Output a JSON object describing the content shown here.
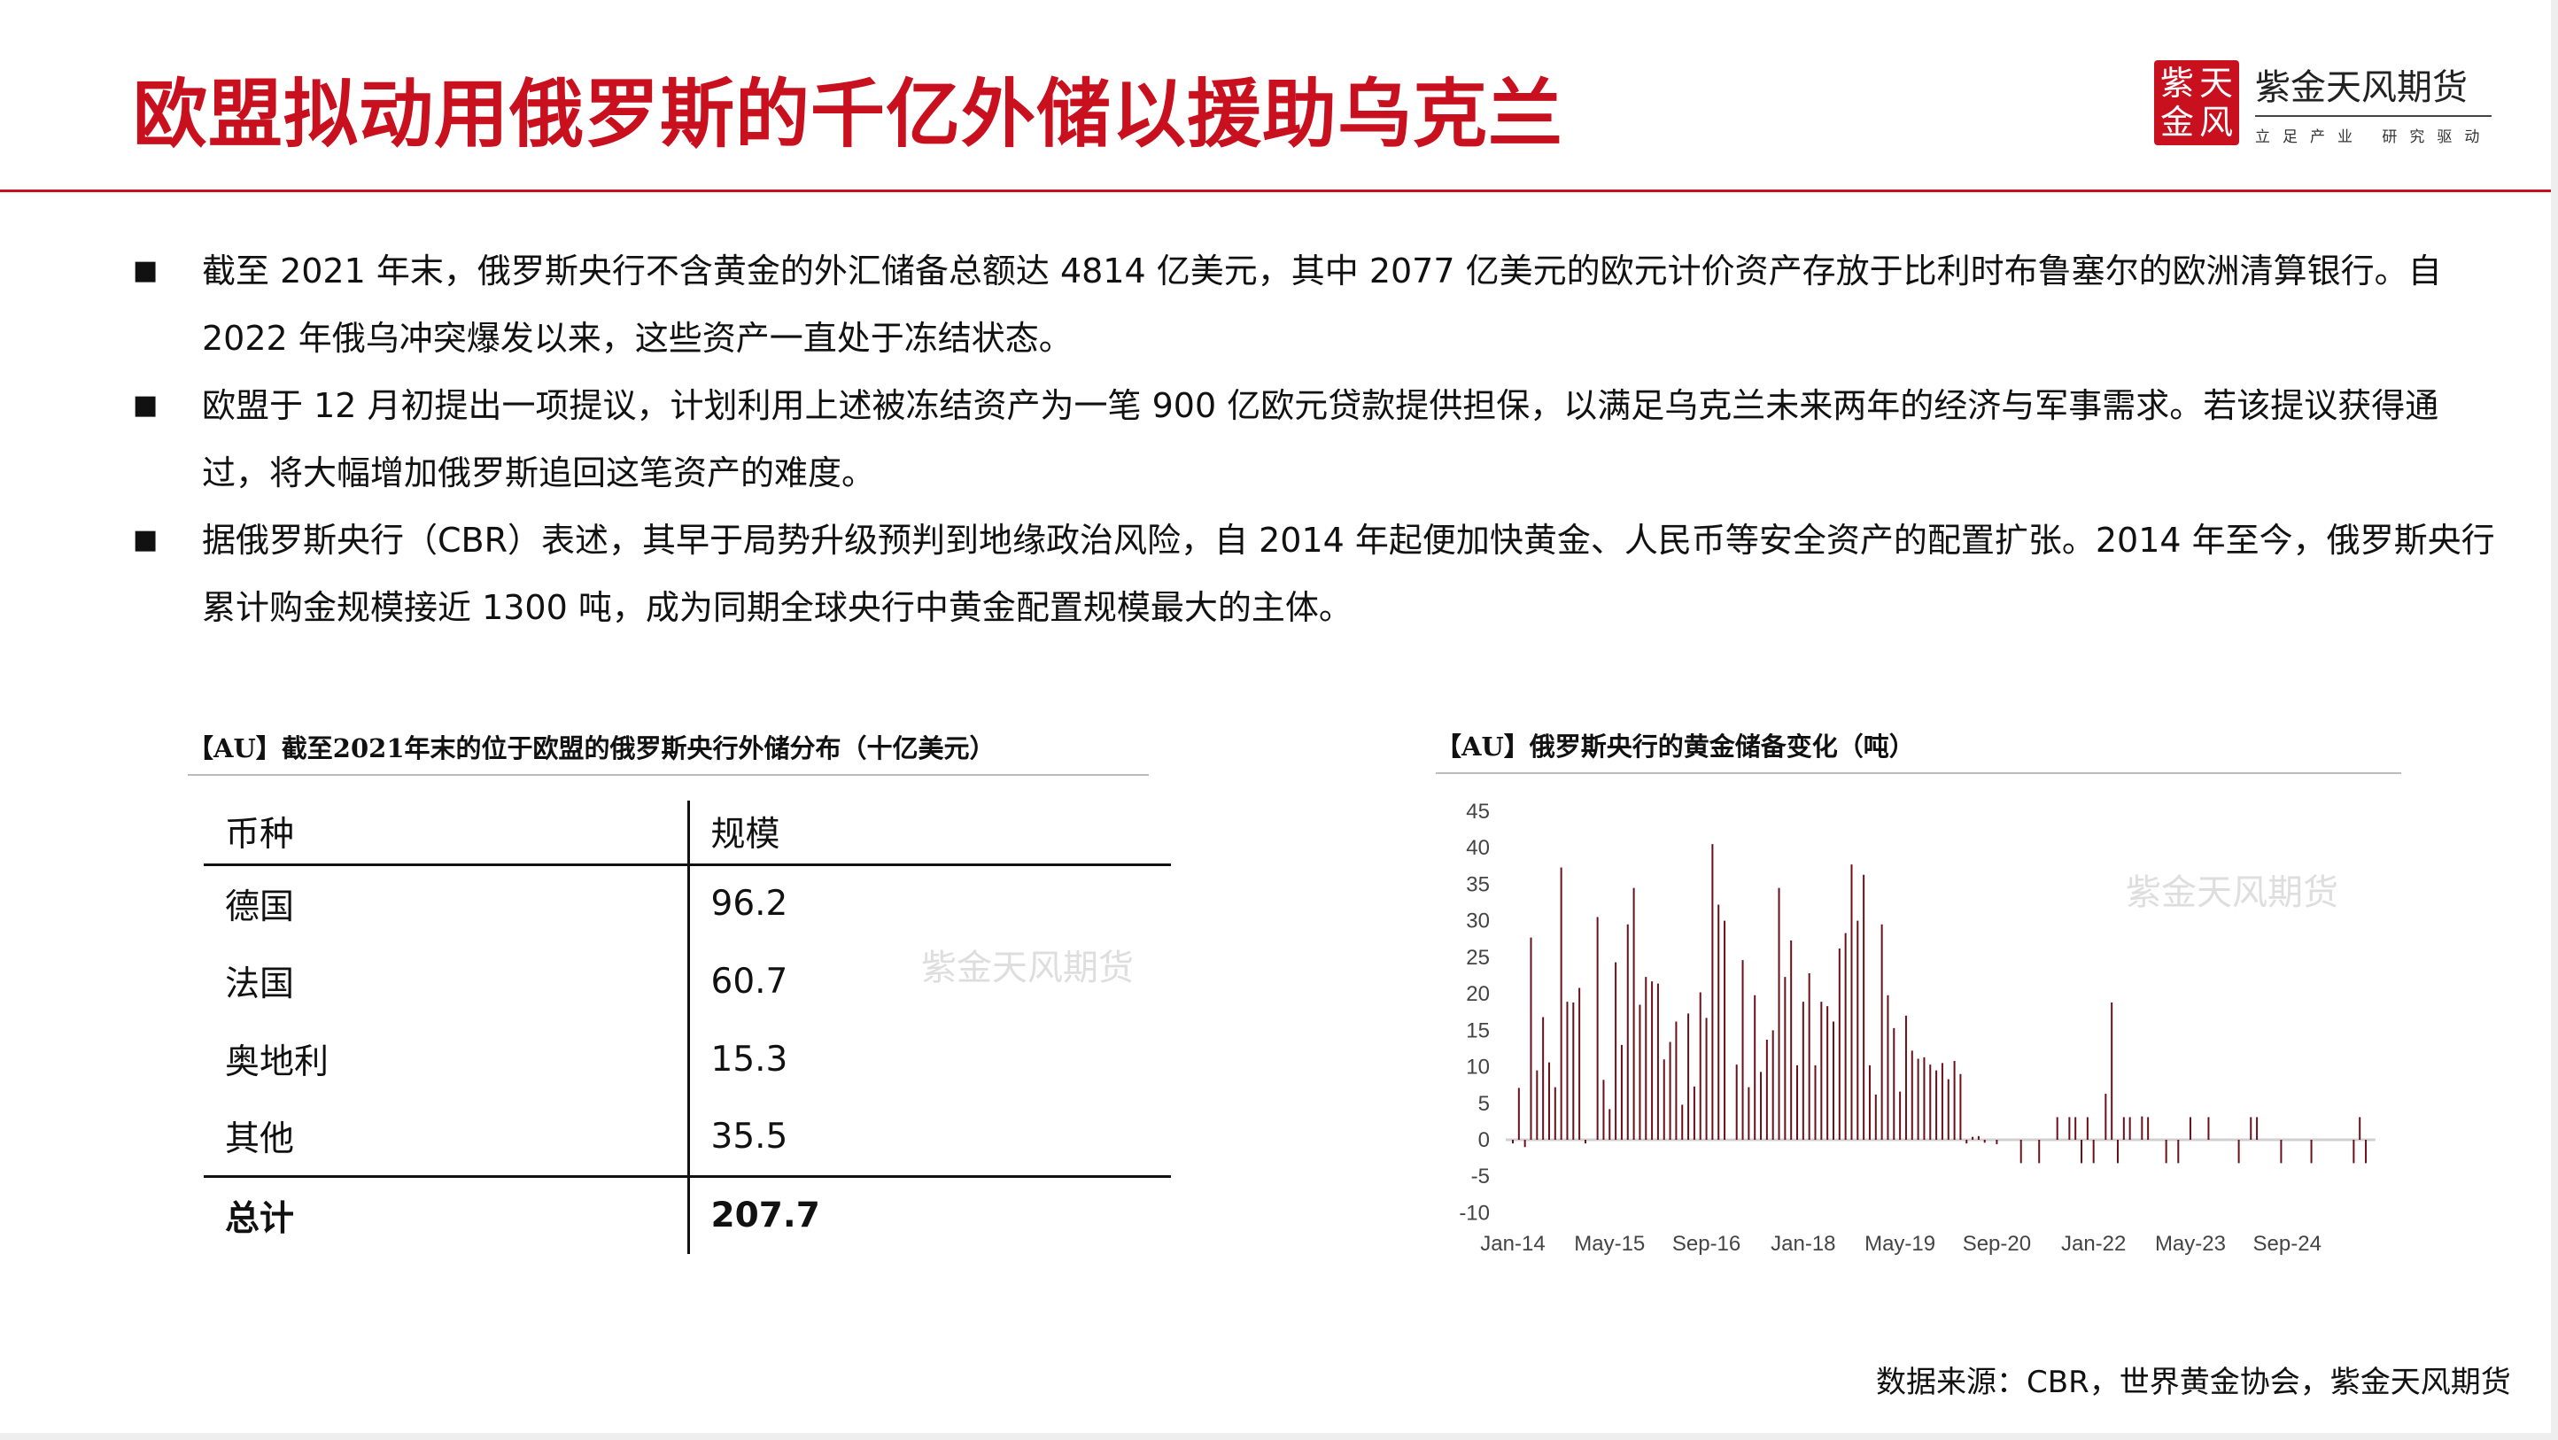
{
  "header": {
    "title": "欧盟拟动用俄罗斯的千亿外储以援助乌克兰",
    "brand_color": "#c8101e"
  },
  "logo": {
    "seal": [
      "紫",
      "天",
      "金",
      "风"
    ],
    "name": "紫金天风期货",
    "slogan": "立足产业 研究驱动"
  },
  "bullets": [
    "截至 2021 年末，俄罗斯央行不含黄金的外汇储备总额达 4814 亿美元，其中 2077 亿美元的欧元计价资产存放于比利时布鲁塞尔的欧洲清算银行。自 2022 年俄乌冲突爆发以来，这些资产一直处于冻结状态。",
    "欧盟于 12 月初提出一项提议，计划利用上述被冻结资产为一笔 900 亿欧元贷款提供担保，以满足乌克兰未来两年的经济与军事需求。若该提议获得通过，将大幅增加俄罗斯追回这笔资产的难度。",
    "据俄罗斯央行（CBR）表述，其早于局势升级预判到地缘政治风险，自 2014 年起便加快黄金、人民币等安全资产的配置扩张。2014 年至今，俄罗斯央行累计购金规模接近 1300 吨，成为同期全球央行中黄金配置规模最大的主体。"
  ],
  "bullet_icon": "square-bullet-icon",
  "table": {
    "title": "【AU】截至2021年末的位于欧盟的俄罗斯央行外储分布（十亿美元）",
    "headers": [
      "币种",
      "规模"
    ],
    "rows": [
      [
        "德国",
        "96.2"
      ],
      [
        "法国",
        "60.7"
      ],
      [
        "奥地利",
        "15.3"
      ],
      [
        "其他",
        "35.5"
      ]
    ],
    "total": [
      "总计",
      "207.7"
    ]
  },
  "chart_data": {
    "type": "bar",
    "title": "【AU】俄罗斯央行的黄金储备变化（吨）",
    "frequency": "monthly",
    "x_tick_labels": [
      "Jan-14",
      "May-15",
      "Sep-16",
      "Jan-18",
      "May-19",
      "Sep-20",
      "Jan-22",
      "May-23",
      "Sep-24"
    ],
    "y_ticks": [
      45,
      40,
      35,
      30,
      25,
      20,
      15,
      10,
      5,
      0,
      -5,
      -10
    ],
    "ylim": [
      -10,
      45
    ],
    "grid": false,
    "bar_color": "#6b0f1a",
    "values": [
      -0.5,
      7.1,
      -1,
      27.7,
      9.5,
      16.8,
      10.6,
      7.2,
      37.3,
      18.9,
      18.8,
      20.8,
      -0.5,
      0,
      30.5,
      8.2,
      4.2,
      24.3,
      13,
      29.5,
      34.5,
      18.5,
      22.3,
      21.7,
      21.4,
      11,
      13.4,
      16.2,
      4.8,
      17.3,
      7.3,
      20.2,
      16.7,
      40.5,
      32.2,
      30,
      0,
      10.3,
      24.6,
      7.2,
      19.8,
      9.3,
      13.7,
      15,
      34.5,
      22.3,
      27.3,
      10.2,
      18.9,
      22.8,
      10.2,
      18.9,
      18.3,
      16.2,
      26.2,
      28.3,
      37.7,
      30,
      36.3,
      10.2,
      6.2,
      29.5,
      19.8,
      15.3,
      6.6,
      17,
      12.2,
      11.1,
      11.3,
      10.3,
      9.5,
      10.5,
      8.3,
      10.8,
      9,
      -0.5,
      0.4,
      0.5,
      -0.4,
      0,
      -0.6,
      0,
      0,
      0,
      -3.2,
      0,
      0,
      -3.2,
      0,
      0,
      3.1,
      0,
      3.1,
      3.1,
      -3.2,
      3.1,
      -3.2,
      0,
      6.3,
      18.8,
      -3.2,
      3.1,
      3.1,
      0,
      3.2,
      3.1,
      0,
      0,
      -3.2,
      0,
      -3.2,
      0,
      3.1,
      0,
      0,
      3.1,
      0,
      0,
      0,
      0,
      -3.2,
      0,
      3.1,
      3.1,
      0,
      0,
      0,
      -3.2,
      0,
      0,
      0,
      0,
      -3.2,
      0,
      0,
      0,
      0,
      0,
      0,
      -3.2,
      3.1,
      -3.2
    ]
  },
  "source": "数据来源：CBR，世界黄金协会，紫金天风期货"
}
